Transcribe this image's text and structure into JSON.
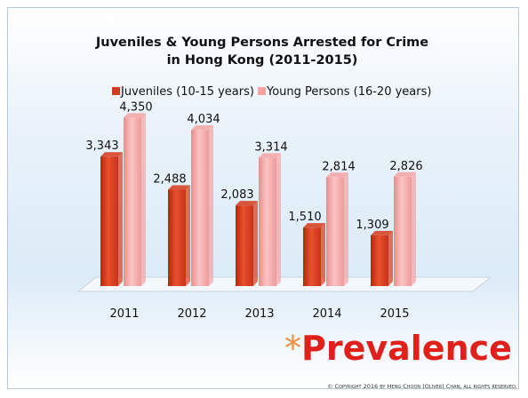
{
  "chart_data": {
    "type": "bar",
    "title": "Juveniles & Young Persons Arrested for Crime in Hong Kong (2011-2015)",
    "categories": [
      "2011",
      "2012",
      "2013",
      "2014",
      "2015"
    ],
    "series": [
      {
        "name": "Juveniles (10-15 years)",
        "color": "#d63a1c",
        "values": [
          3343,
          2488,
          2083,
          1510,
          1309
        ],
        "value_labels": [
          "3,343",
          "2,488",
          "2,083",
          "1,510",
          "1,309"
        ]
      },
      {
        "name": "Young Persons (16-20 years)",
        "color": "#f5a3a3",
        "values": [
          4350,
          4034,
          3314,
          2814,
          2826
        ],
        "value_labels": [
          "4,350",
          "4,034",
          "3,314",
          "2,814",
          "2,826"
        ]
      }
    ],
    "ylim": [
      0,
      5000
    ],
    "legend": "top"
  },
  "slide": {
    "asterisk": "*",
    "heading": "Prevalence",
    "footer": "© Copyright 2016 by Heng Choon (Oliver) Chan, all rights reserved."
  }
}
